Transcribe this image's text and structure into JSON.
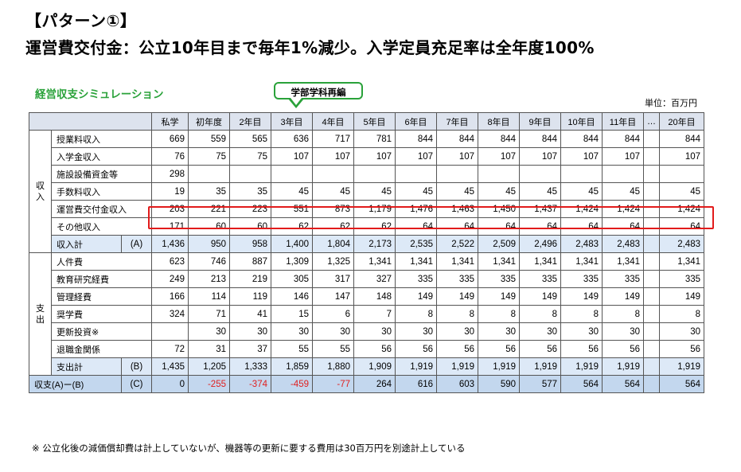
{
  "title_line1": "【パターン①】",
  "title_line2": "運営費交付金：公立10年目まで毎年1%減少。入学定員充足率は全年度100%",
  "simulation_label": "経営収支シミュレーション",
  "callout": "学部学科再編",
  "unit": "単位：百万円",
  "columns": [
    "私学",
    "初年度",
    "2年目",
    "3年目",
    "4年目",
    "5年目",
    "6年目",
    "7年目",
    "8年目",
    "9年目",
    "10年目",
    "11年目",
    "…",
    "20年目"
  ],
  "income_label": [
    "収",
    "入"
  ],
  "expense_label": [
    "支",
    "出"
  ],
  "income_rows": [
    {
      "label": "授業料収入",
      "values": [
        "669",
        "559",
        "565",
        "636",
        "717",
        "781",
        "844",
        "844",
        "844",
        "844",
        "844",
        "844",
        "",
        "844"
      ]
    },
    {
      "label": "入学金収入",
      "values": [
        "76",
        "75",
        "75",
        "107",
        "107",
        "107",
        "107",
        "107",
        "107",
        "107",
        "107",
        "107",
        "",
        "107"
      ]
    },
    {
      "label": "施設設備資金等",
      "values": [
        "298",
        "",
        "",
        "",
        "",
        "",
        "",
        "",
        "",
        "",
        "",
        "",
        "",
        ""
      ]
    },
    {
      "label": "手数料収入",
      "values": [
        "19",
        "35",
        "35",
        "45",
        "45",
        "45",
        "45",
        "45",
        "45",
        "45",
        "45",
        "45",
        "",
        "45"
      ]
    },
    {
      "label": "運営費交付金収入",
      "values": [
        "203",
        "221",
        "223",
        "551",
        "873",
        "1,179",
        "1,476",
        "1,463",
        "1,450",
        "1,437",
        "1,424",
        "1,424",
        "",
        "1,424"
      ]
    },
    {
      "label": "その他収入",
      "values": [
        "171",
        "60",
        "60",
        "62",
        "62",
        "62",
        "64",
        "64",
        "64",
        "64",
        "64",
        "64",
        "",
        "64"
      ]
    }
  ],
  "income_total": {
    "label": "収入計",
    "tag": "(A)",
    "values": [
      "1,436",
      "950",
      "958",
      "1,400",
      "1,804",
      "2,173",
      "2,535",
      "2,522",
      "2,509",
      "2,496",
      "2,483",
      "2,483",
      "",
      "2,483"
    ]
  },
  "expense_rows": [
    {
      "label": "人件費",
      "values": [
        "623",
        "746",
        "887",
        "1,309",
        "1,325",
        "1,341",
        "1,341",
        "1,341",
        "1,341",
        "1,341",
        "1,341",
        "1,341",
        "",
        "1,341"
      ]
    },
    {
      "label": "教育研究経費",
      "values": [
        "249",
        "213",
        "219",
        "305",
        "317",
        "327",
        "335",
        "335",
        "335",
        "335",
        "335",
        "335",
        "",
        "335"
      ]
    },
    {
      "label": "管理経費",
      "values": [
        "166",
        "114",
        "119",
        "146",
        "147",
        "148",
        "149",
        "149",
        "149",
        "149",
        "149",
        "149",
        "",
        "149"
      ]
    },
    {
      "label": "奨学費",
      "values": [
        "324",
        "71",
        "41",
        "15",
        "6",
        "7",
        "8",
        "8",
        "8",
        "8",
        "8",
        "8",
        "",
        "8"
      ]
    },
    {
      "label": "更新投資※",
      "values": [
        "",
        "30",
        "30",
        "30",
        "30",
        "30",
        "30",
        "30",
        "30",
        "30",
        "30",
        "30",
        "",
        "30"
      ]
    },
    {
      "label": "退職金関係",
      "values": [
        "72",
        "31",
        "37",
        "55",
        "55",
        "56",
        "56",
        "56",
        "56",
        "56",
        "56",
        "56",
        "",
        "56"
      ]
    }
  ],
  "expense_total": {
    "label": "支出計",
    "tag": "(B)",
    "values": [
      "1,435",
      "1,205",
      "1,333",
      "1,859",
      "1,880",
      "1,909",
      "1,919",
      "1,919",
      "1,919",
      "1,919",
      "1,919",
      "1,919",
      "",
      "1,919"
    ]
  },
  "net_row": {
    "label": "収支(A)ー(B)",
    "tag": "(C)",
    "values": [
      "0",
      "-255",
      "-374",
      "-459",
      "-77",
      "264",
      "616",
      "603",
      "590",
      "577",
      "564",
      "564",
      "",
      "564"
    ]
  },
  "negative_color": "#e02020",
  "highlight_color": "#e21b1b",
  "footnote": "※ 公立化後の減価償却費は計上していないが、機器等の更新に要する費用は30百万円を別途計上している"
}
